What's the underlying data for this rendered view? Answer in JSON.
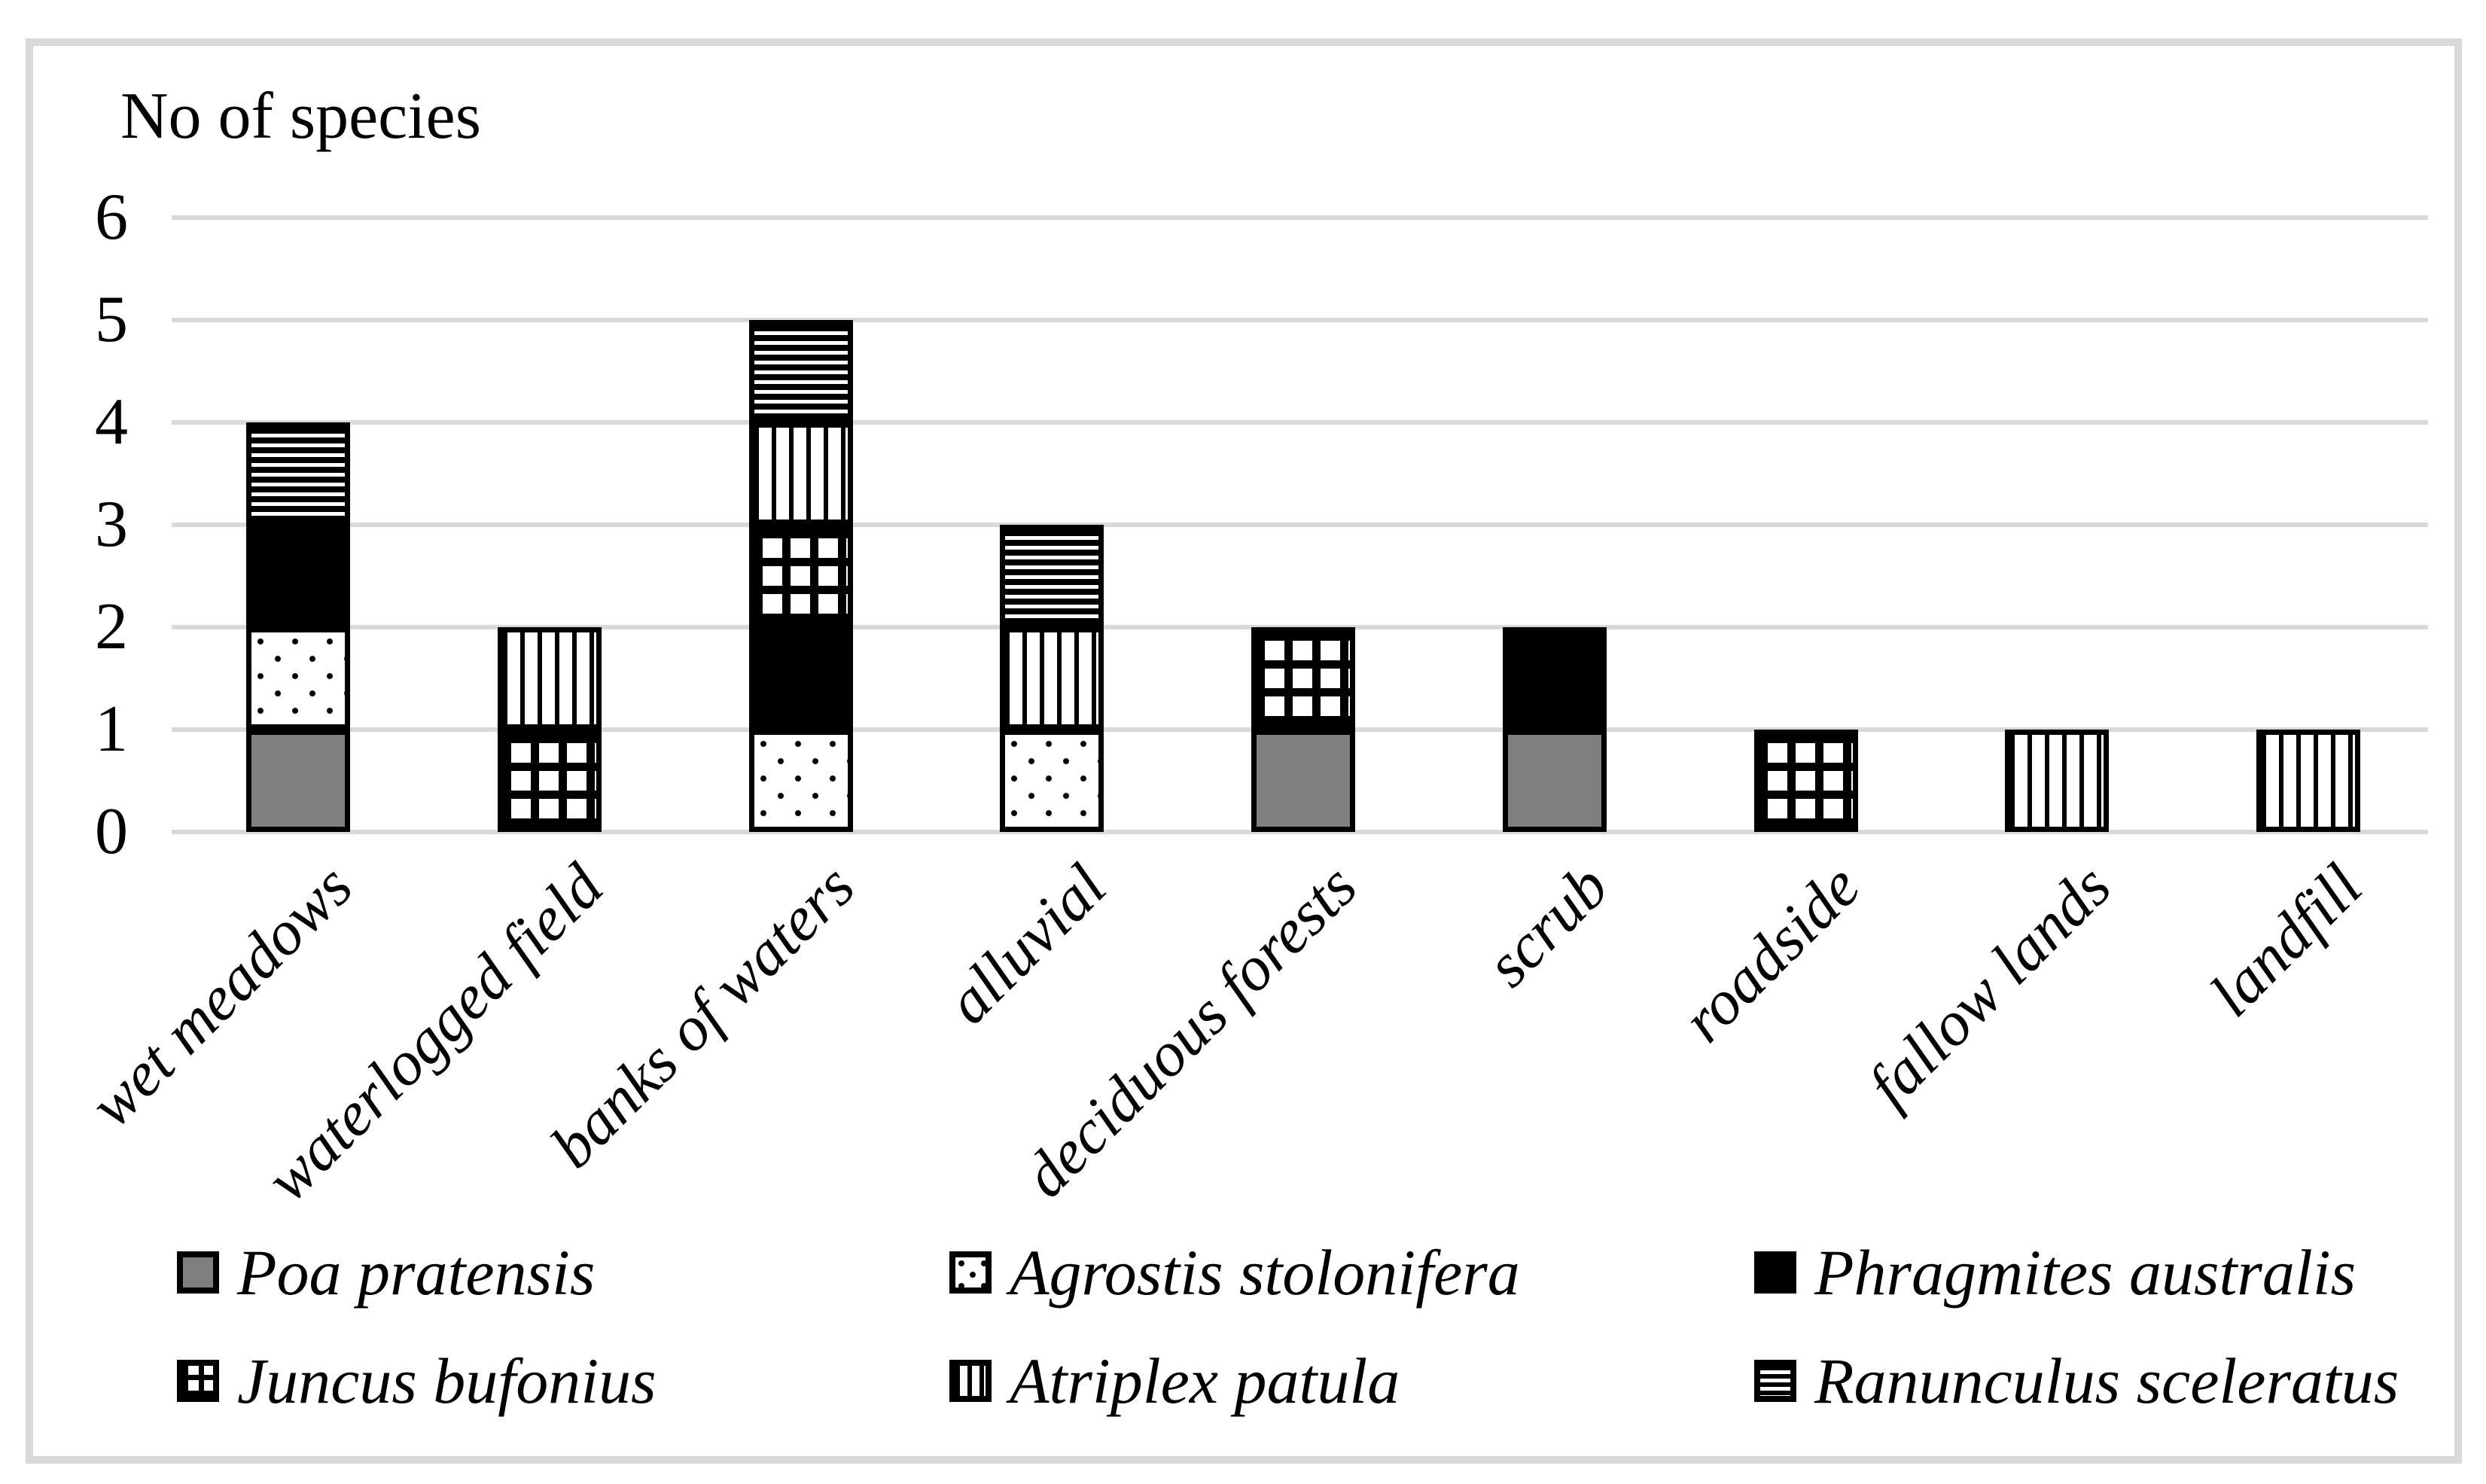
{
  "chart_data": {
    "type": "bar",
    "stacked": true,
    "title": "No of species",
    "categories": [
      "wet meadows",
      "waterlogged field",
      "banks of waters",
      "alluvial",
      "deciduous forests",
      "scrub",
      "roadside",
      "fallow lands",
      "landfill"
    ],
    "series": [
      {
        "name": "Poa pratensis",
        "pattern": "solid-gray",
        "values": [
          1,
          0,
          0,
          0,
          1,
          1,
          0,
          0,
          0
        ]
      },
      {
        "name": "Agrostis stolonifera",
        "pattern": "dotted-white",
        "values": [
          1,
          0,
          1,
          1,
          0,
          0,
          0,
          0,
          0
        ]
      },
      {
        "name": "Phragmites australis",
        "pattern": "solid-black",
        "values": [
          1,
          0,
          1,
          0,
          0,
          1,
          0,
          0,
          0
        ]
      },
      {
        "name": "Juncus bufonius",
        "pattern": "grid-crosshatch",
        "values": [
          0,
          1,
          1,
          0,
          1,
          0,
          1,
          0,
          0
        ]
      },
      {
        "name": "Atriplex patula",
        "pattern": "vertical-stripes",
        "values": [
          0,
          1,
          1,
          1,
          0,
          0,
          0,
          1,
          1
        ]
      },
      {
        "name": "Ranunculus sceleratus",
        "pattern": "horizontal-stripes",
        "values": [
          1,
          0,
          1,
          1,
          0,
          0,
          0,
          0,
          0
        ]
      }
    ],
    "totals": [
      4,
      2,
      5,
      3,
      2,
      2,
      1,
      1,
      1
    ],
    "y_axis": {
      "min": 0,
      "max": 6,
      "step": 1,
      "ticks": [
        6,
        5,
        4,
        3,
        2,
        1,
        0
      ]
    },
    "grid": true,
    "legend_position": "bottom",
    "colors": {
      "bar_gray": "#7f7f7f",
      "bar_black": "#000000",
      "bar_white": "#ffffff",
      "gridline": "#d9d9d9",
      "frame_border": "#d9d9d9",
      "text": "#000000"
    }
  }
}
